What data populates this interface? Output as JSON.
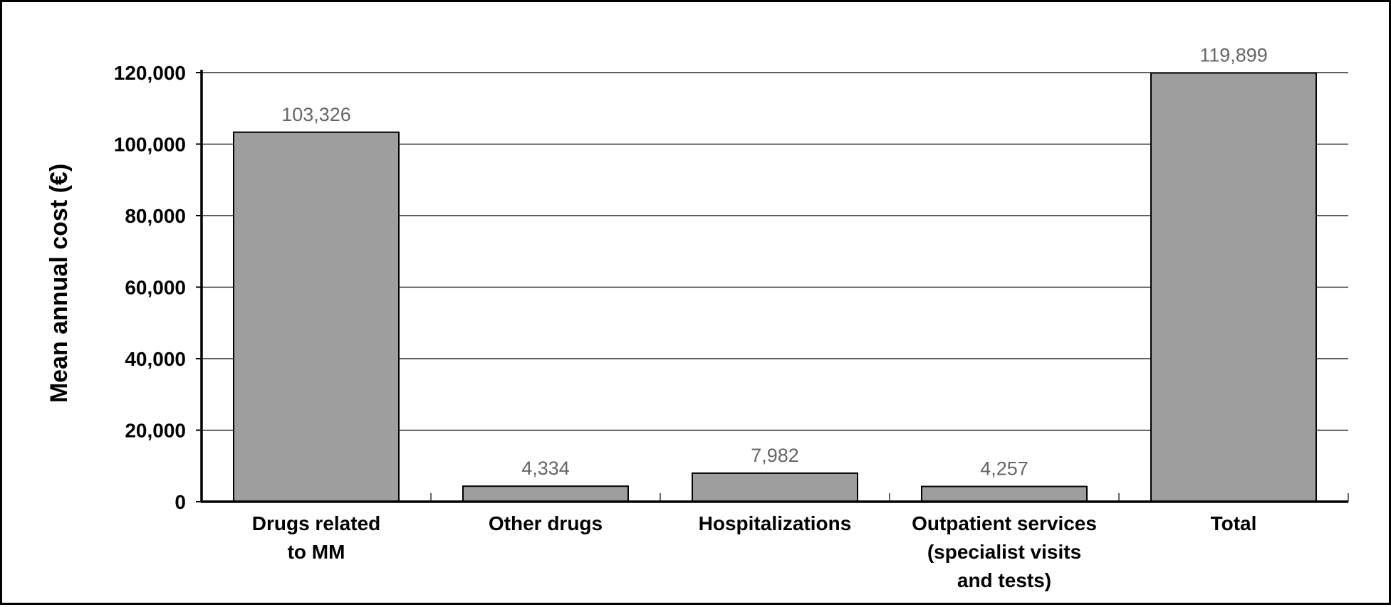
{
  "chart_data": {
    "type": "bar",
    "title": "",
    "xlabel": "",
    "ylabel": "Mean annual cost (€)",
    "categories": [
      [
        "Drugs related",
        "to MM"
      ],
      [
        "Other drugs"
      ],
      [
        "Hospitalizations"
      ],
      [
        "Outpatient services",
        "(specialist visits",
        "and tests)"
      ],
      [
        "Total"
      ]
    ],
    "values": [
      103326,
      4334,
      7982,
      4257,
      119899
    ],
    "value_labels": [
      "103,326",
      "4,334",
      "7,982",
      "4,257",
      "119,899"
    ],
    "ylim": [
      0,
      120000
    ],
    "yticks": [
      0,
      20000,
      40000,
      60000,
      80000,
      100000,
      120000
    ],
    "ytick_labels": [
      "0",
      "20,000",
      "40,000",
      "60,000",
      "80,000",
      "100,000",
      "120,000"
    ],
    "grid": true,
    "legend": "none",
    "colors": {
      "bar_fill": "#9e9e9e",
      "bar_stroke": "#000000",
      "grid": "#000000",
      "data_label": "#666666"
    }
  }
}
